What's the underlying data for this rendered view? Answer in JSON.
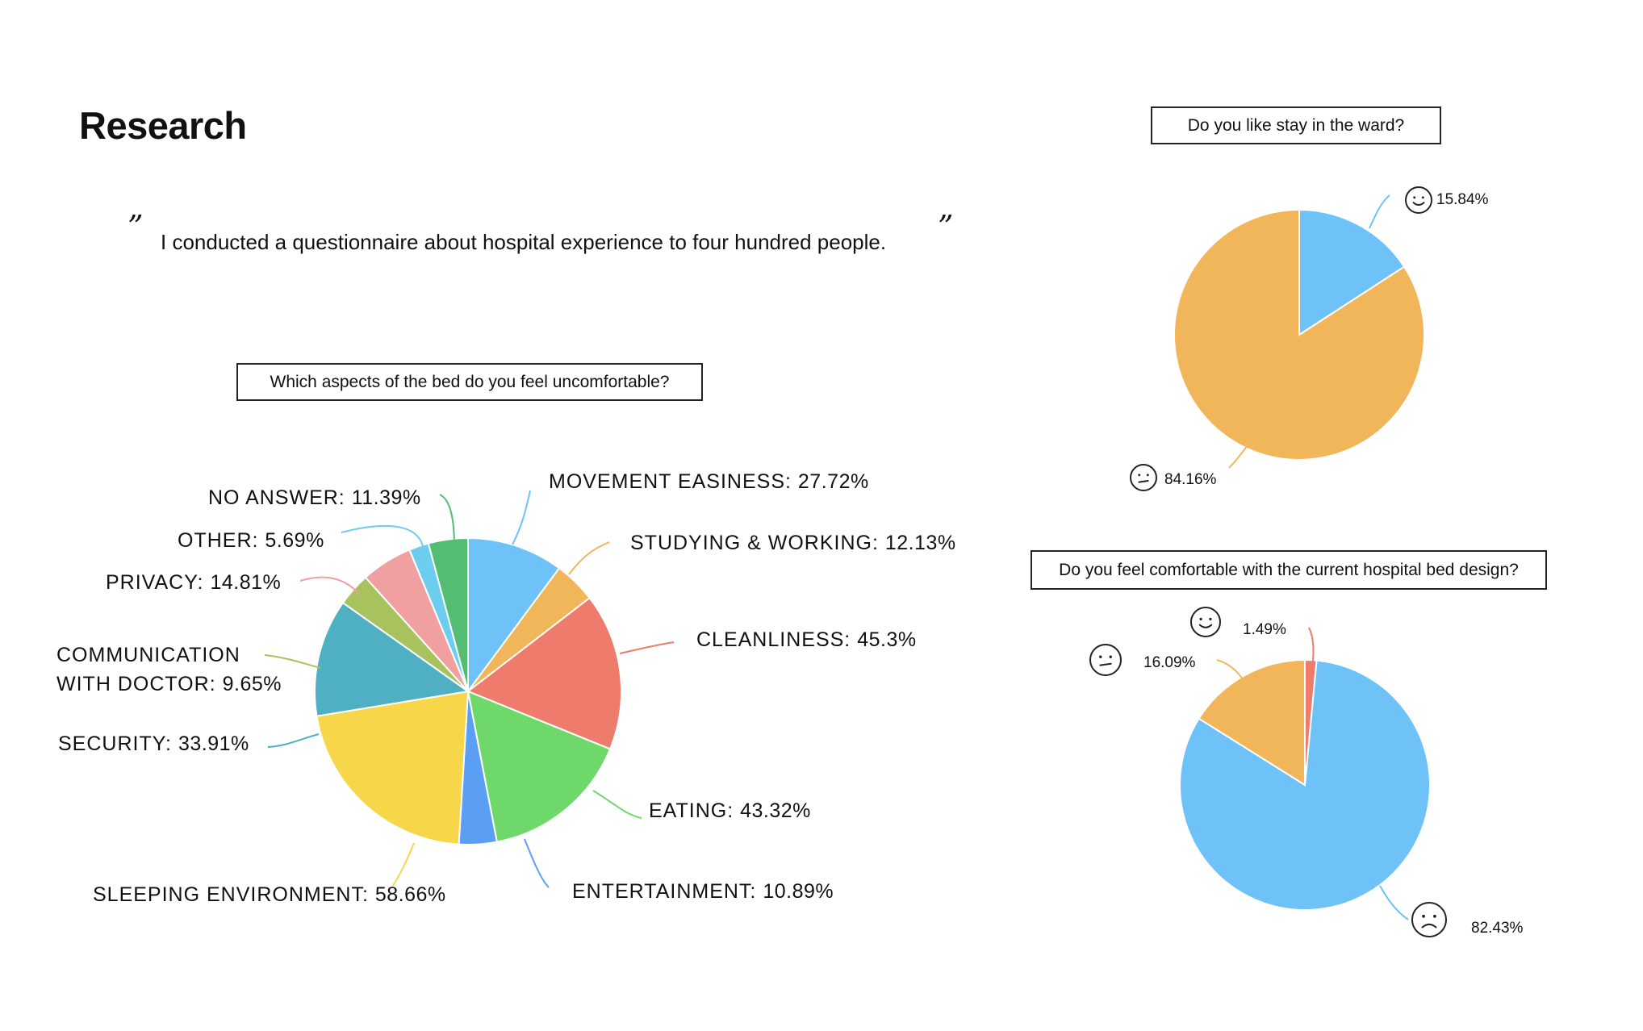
{
  "page": {
    "title": "Research",
    "quote_open": "”",
    "quote_close": "”",
    "quote": "I conducted a questionnaire about hospital experience to four hundred people."
  },
  "chart_data": [
    {
      "type": "pie",
      "title": "Which aspects of the bed do you feel uncomfortable?",
      "slices": [
        {
          "label": "MOVEMENT EASINESS",
          "value": 27.72,
          "display": "27.72%",
          "color": "#6ec2f7"
        },
        {
          "label": "STUDYING & WORKING",
          "value": 12.13,
          "display": "12.13%",
          "color": "#f1b55a"
        },
        {
          "label": "CLEANLINESS",
          "value": 45.3,
          "display": "45.3%",
          "color": "#ee7b6b"
        },
        {
          "label": "EATING",
          "value": 43.32,
          "display": "43.32%",
          "color": "#6ed96a"
        },
        {
          "label": "ENTERTAINMENT",
          "value": 10.89,
          "display": "10.89%",
          "color": "#5b9ff5"
        },
        {
          "label": "SLEEPING ENVIRONMENT",
          "value": 58.66,
          "display": "58.66%",
          "color": "#f7d64a"
        },
        {
          "label": "SECURITY",
          "value": 33.91,
          "display": "33.91%",
          "color": "#4fb0c4"
        },
        {
          "label": "COMMUNICATION\nWITH DOCTOR",
          "value": 9.65,
          "display": "9.65%",
          "color": "#a8c35e"
        },
        {
          "label": "PRIVACY",
          "value": 14.81,
          "display": "14.81%",
          "color": "#f0a0a0"
        },
        {
          "label": "OTHER",
          "value": 5.69,
          "display": "5.69%",
          "color": "#6dcdef"
        },
        {
          "label": "NO ANSWER",
          "value": 11.39,
          "display": "11.39%",
          "color": "#53bd74"
        }
      ]
    },
    {
      "type": "pie",
      "title": "Do you like stay in the ward?",
      "slices": [
        {
          "label": "happy",
          "value": 15.84,
          "display": "15.84%",
          "color": "#6ec2f7",
          "icon": "smile-face-icon"
        },
        {
          "label": "neutral",
          "value": 84.16,
          "display": "84.16%",
          "color": "#f1b55a",
          "icon": "neutral-face-icon"
        }
      ]
    },
    {
      "type": "pie",
      "title": "Do you feel comfortable with the current hospital bed design?",
      "slices": [
        {
          "label": "sad",
          "value": 82.43,
          "display": "82.43%",
          "color": "#6ec2f7",
          "icon": "sad-face-icon"
        },
        {
          "label": "neutral",
          "value": 16.09,
          "display": "16.09%",
          "color": "#f1b55a",
          "icon": "neutral-face-icon"
        },
        {
          "label": "happy",
          "value": 1.49,
          "display": "1.49%",
          "color": "#ee7b6b",
          "icon": "smile-face-icon"
        }
      ]
    }
  ]
}
